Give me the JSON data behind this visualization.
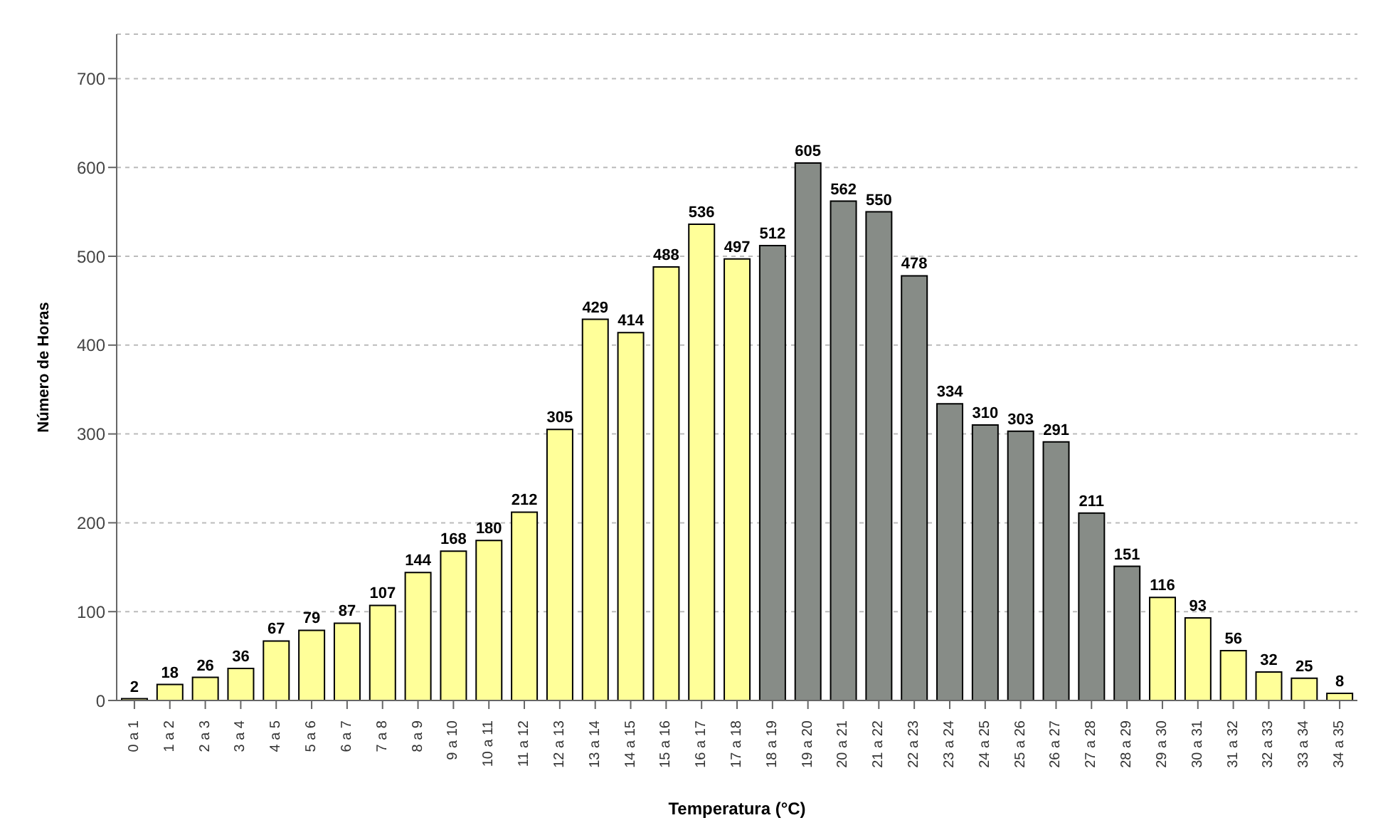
{
  "chart_data": {
    "type": "bar",
    "xlabel": "Temperatura (°C)",
    "ylabel": "Número de Horas",
    "categories": [
      "0 a 1",
      "1 a 2",
      "2 a 3",
      "3 a 4",
      "4 a 5",
      "5 a 6",
      "6 a 7",
      "7 a 8",
      "8 a 9",
      "9 a 10",
      "10 a 11",
      "11 a 12",
      "12 a 13",
      "13 a 14",
      "14 a 15",
      "15 a 16",
      "16 a 17",
      "17 a 18",
      "18 a 19",
      "19 a 20",
      "20 a 21",
      "21 a 22",
      "22 a 23",
      "23 a 24",
      "24 a 25",
      "25 a 26",
      "26 a 27",
      "27 a 28",
      "28 a 29",
      "29 a 30",
      "30 a 31",
      "31 a 32",
      "32 a 33",
      "33 a 34",
      "34 a 35"
    ],
    "values": [
      2,
      18,
      26,
      36,
      67,
      79,
      87,
      107,
      144,
      168,
      180,
      212,
      305,
      429,
      414,
      488,
      536,
      497,
      512,
      605,
      562,
      550,
      478,
      334,
      310,
      303,
      291,
      211,
      151,
      116,
      93,
      56,
      32,
      25,
      8
    ],
    "colors": [
      "#ffff99",
      "#ffff99",
      "#ffff99",
      "#ffff99",
      "#ffff99",
      "#ffff99",
      "#ffff99",
      "#ffff99",
      "#ffff99",
      "#ffff99",
      "#ffff99",
      "#ffff99",
      "#ffff99",
      "#ffff99",
      "#ffff99",
      "#ffff99",
      "#ffff99",
      "#ffff99",
      "#878c87",
      "#878c87",
      "#878c87",
      "#878c87",
      "#878c87",
      "#878c87",
      "#878c87",
      "#878c87",
      "#878c87",
      "#878c87",
      "#878c87",
      "#ffff99",
      "#ffff99",
      "#ffff99",
      "#ffff99",
      "#ffff99",
      "#ffff99"
    ],
    "ylim": [
      0,
      750
    ],
    "yticks": [
      0,
      100,
      200,
      300,
      400,
      500,
      600,
      700
    ],
    "grid": "y",
    "data_labels": true
  }
}
